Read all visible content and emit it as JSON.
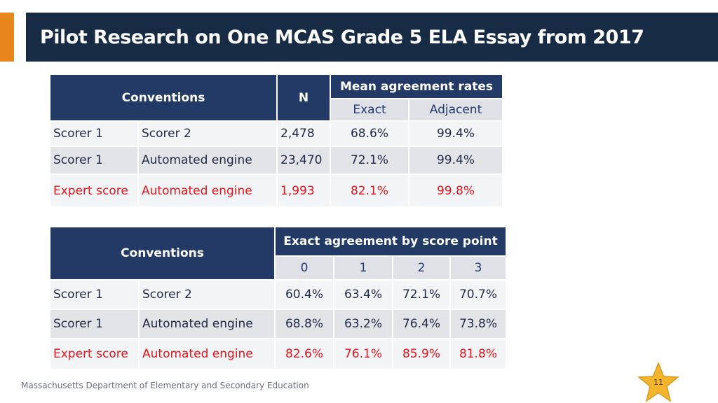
{
  "title": "Pilot Research on One MCAS Grade 5 ELA Essay from 2017",
  "colors": {
    "accent": "#e6861c",
    "navy": "#172b45",
    "header": "#233a66",
    "highlight": "#e8141b"
  },
  "table1": {
    "col_conventions": "Conventions",
    "col_n": "N",
    "col_mean": "Mean agreement rates",
    "sub_exact": "Exact",
    "sub_adjacent": "Adjacent",
    "rows": [
      {
        "a": "Scorer 1",
        "b": "Scorer 2",
        "n": "2,478",
        "exact": "68.6%",
        "adjacent": "99.4%"
      },
      {
        "a": "Scorer 1",
        "b": "Automated engine",
        "n": "23,470",
        "exact": "72.1%",
        "adjacent": "99.4%"
      },
      {
        "a": "Expert score",
        "b": "Automated engine",
        "n": "1,993",
        "exact": "82.1%",
        "adjacent": "99.8%"
      }
    ]
  },
  "table2": {
    "col_conventions": "Conventions",
    "col_exact": "Exact agreement by score point",
    "points": [
      "0",
      "1",
      "2",
      "3"
    ],
    "rows": [
      {
        "a": "Scorer 1",
        "b": "Scorer 2",
        "p0": "60.4%",
        "p1": "63.4%",
        "p2": "72.1%",
        "p3": "70.7%"
      },
      {
        "a": "Scorer 1",
        "b": "Automated engine",
        "p0": "68.8%",
        "p1": "63.2%",
        "p2": "76.4%",
        "p3": "73.8%"
      },
      {
        "a": "Expert score",
        "b": "Automated engine",
        "p0": "82.6%",
        "p1": "76.1%",
        "p2": "85.9%",
        "p3": "81.8%"
      }
    ]
  },
  "footer": "Massachusetts Department of Elementary and Secondary Education",
  "page_number": "11"
}
